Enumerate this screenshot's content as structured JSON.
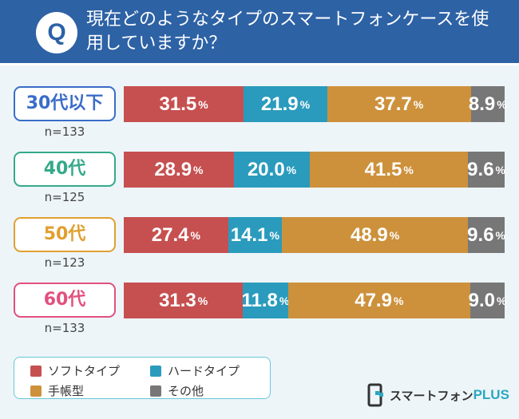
{
  "header": {
    "q": "Q",
    "title": "現在どのようなタイプのスマートフォンケースを使用していますか？"
  },
  "chart_data": {
    "type": "bar",
    "stacked": true,
    "orientation": "horizontal",
    "title": "現在どのようなタイプのスマートフォンケースを使用していますか？",
    "categories": [
      "30代以下",
      "40代",
      "50代",
      "60代"
    ],
    "sample_sizes": [
      "n=133",
      "n=125",
      "n=123",
      "n=133"
    ],
    "category_colors": [
      "#3a6cc8",
      "#35a98a",
      "#e0a030",
      "#e2507e"
    ],
    "unit": "%",
    "series": [
      {
        "name": "ソフトタイプ",
        "color": "#c65050",
        "values": [
          31.5,
          28.9,
          27.4,
          31.3
        ]
      },
      {
        "name": "ハードタイプ",
        "color": "#2a9bbd",
        "values": [
          21.9,
          20.0,
          14.1,
          11.8
        ]
      },
      {
        "name": "手帳型",
        "color": "#cd913c",
        "values": [
          37.7,
          41.5,
          48.9,
          47.9
        ]
      },
      {
        "name": "その他",
        "color": "#777777",
        "values": [
          8.9,
          9.6,
          9.6,
          9.0
        ]
      }
    ],
    "legend": "bottom-left"
  },
  "logo": {
    "text": "スマートフォン",
    "plus": "PLUS"
  }
}
